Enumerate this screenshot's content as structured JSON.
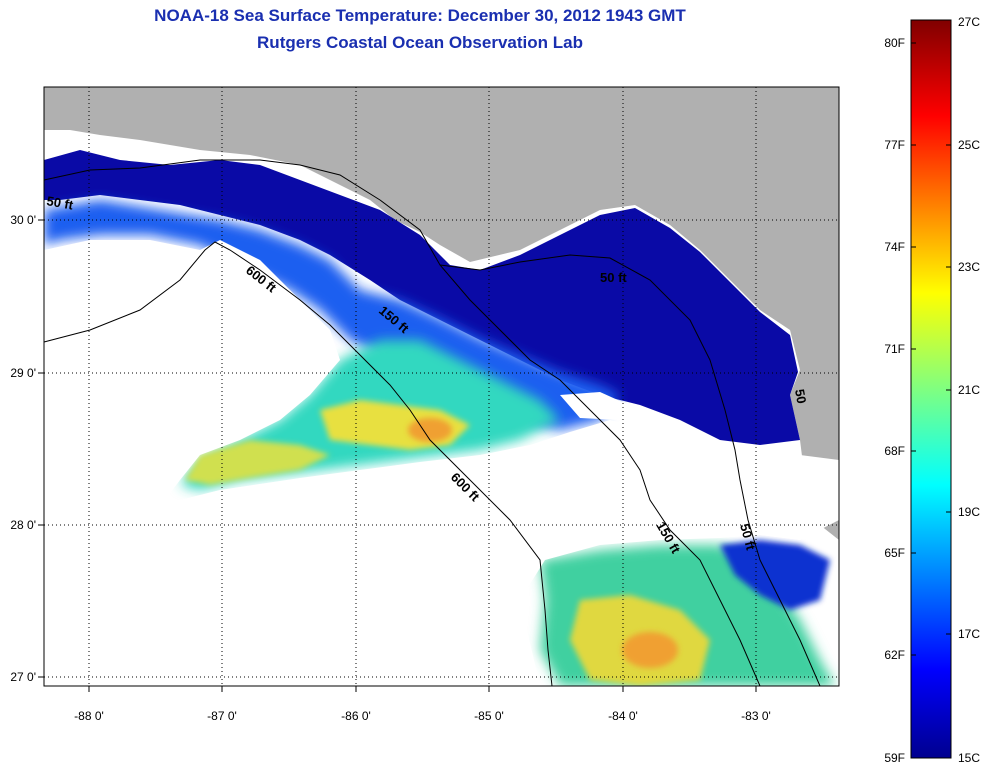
{
  "title": {
    "line1": "NOAA-18 Sea Surface Temperature:  December 30, 2012 1943 GMT",
    "line2": "Rutgers Coastal Ocean Observation Lab"
  },
  "map": {
    "lon_ticks": [
      "-88 0'",
      "-87 0'",
      "-86 0'",
      "-85 0'",
      "-84 0'",
      "-83 0'"
    ],
    "lat_ticks": [
      "30 0'",
      "29 0'",
      "28 0'",
      "27 0'"
    ],
    "contour_labels": [
      "50 ft",
      "600 ft",
      "150 ft",
      "50 ft",
      "600 ft",
      "150 ft",
      "50 ft",
      "50"
    ],
    "colors": {
      "land": "#b0b0b0",
      "cloud": "#ffffff",
      "grid": "#000000"
    }
  },
  "colorbar": {
    "fahrenheit": [
      "80F",
      "77F",
      "74F",
      "71F",
      "68F",
      "65F",
      "62F",
      "59F"
    ],
    "celsius": [
      "27C",
      "25C",
      "23C",
      "21C",
      "19C",
      "17C",
      "15C"
    ],
    "range_c": [
      15,
      27
    ]
  }
}
